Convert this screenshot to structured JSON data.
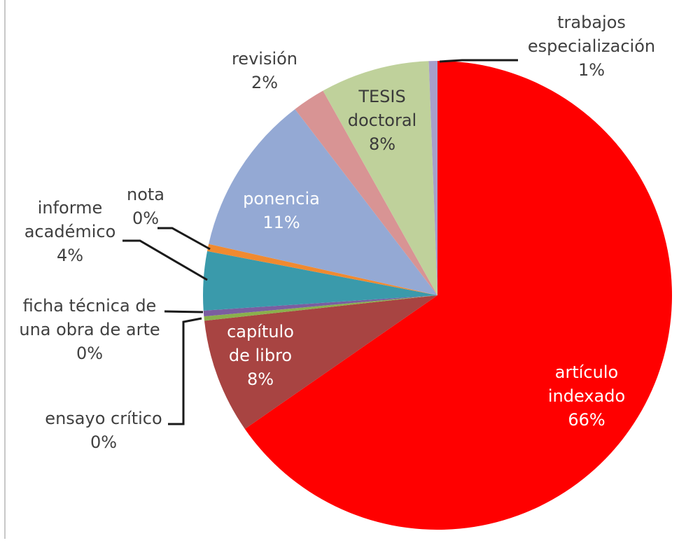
{
  "chart_data": {
    "type": "pie",
    "title": "",
    "slices": [
      {
        "category": "artículo indexado",
        "label": [
          "artículo",
          "indexado",
          "66%"
        ],
        "value": 66,
        "color": "#ff0000",
        "label_color": "#ffffff"
      },
      {
        "category": "capítulo de libro",
        "label": [
          "capítulo",
          "de libro",
          "8%"
        ],
        "value": 8,
        "color": "#a84442",
        "label_color": "#ffffff"
      },
      {
        "category": "ensayo crítico",
        "label": [
          "ensayo crítico",
          "0%"
        ],
        "value": 0.3,
        "color": "#8ab04c",
        "label_color": "#404040"
      },
      {
        "category": "ficha técnica de una obra de arte",
        "label": [
          "ficha técnica de",
          "una obra de arte",
          "0%"
        ],
        "value": 0.4,
        "color": "#7b5ea0",
        "label_color": "#404040"
      },
      {
        "category": "informe académico",
        "label": [
          "informe",
          "académico",
          "4%"
        ],
        "value": 4.1,
        "color": "#3a9aab",
        "label_color": "#404040"
      },
      {
        "category": "nota",
        "label": [
          "nota",
          "0%"
        ],
        "value": 0.5,
        "color": "#f08a30",
        "label_color": "#404040"
      },
      {
        "category": "ponencia",
        "label": [
          "ponencia",
          "11%"
        ],
        "value": 11.2,
        "color": "#94a9d4",
        "label_color": "#ffffff"
      },
      {
        "category": "revisión",
        "label": [
          "revisión",
          "2%"
        ],
        "value": 2.3,
        "color": "#d89494",
        "label_color": "#404040"
      },
      {
        "category": "TESIS doctoral",
        "label": [
          "TESIS",
          "doctoral",
          "8%"
        ],
        "value": 7.6,
        "color": "#bfd19b",
        "label_color": "#3a3a3a"
      },
      {
        "category": "trabajos especialización",
        "label": [
          "trabajos",
          "especialización",
          "1%"
        ],
        "value": 0.6,
        "color": "#a79fca",
        "label_color": "#404040"
      }
    ]
  }
}
